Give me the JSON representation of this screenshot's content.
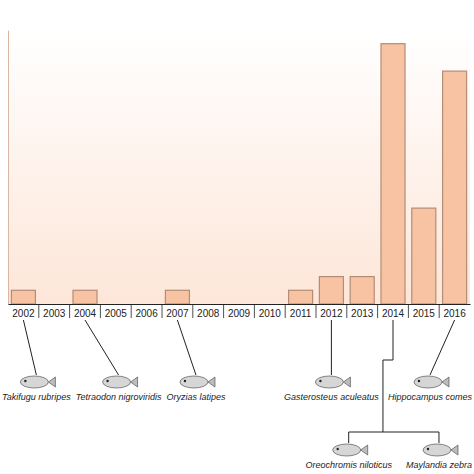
{
  "chart_data": {
    "type": "bar",
    "categories": [
      "2002",
      "2003",
      "2004",
      "2005",
      "2006",
      "2007",
      "2008",
      "2009",
      "2010",
      "2011",
      "2012",
      "2013",
      "2014",
      "2015",
      "2016"
    ],
    "values": [
      1,
      0,
      1,
      0,
      0,
      1,
      0,
      0,
      0,
      1,
      2,
      2,
      19,
      7,
      17
    ],
    "color": "#f7c3a3",
    "ylim": [
      0,
      20
    ],
    "tick_labels": "x",
    "annotations": [
      {
        "text": "Takifugu rubripes",
        "x": "2002"
      },
      {
        "text": "Tetraodon nigroviridis",
        "x": "2004"
      },
      {
        "text": "Oryzias latipes",
        "x": "2007"
      },
      {
        "text": "Gasterosteus aculeatus",
        "x": "2012"
      },
      {
        "text": "Oreochromis niloticus",
        "x": "2014"
      },
      {
        "text": "Maylandia zebra",
        "x": "2014"
      },
      {
        "text": "Hippocampus comes",
        "x": "2016"
      }
    ]
  }
}
